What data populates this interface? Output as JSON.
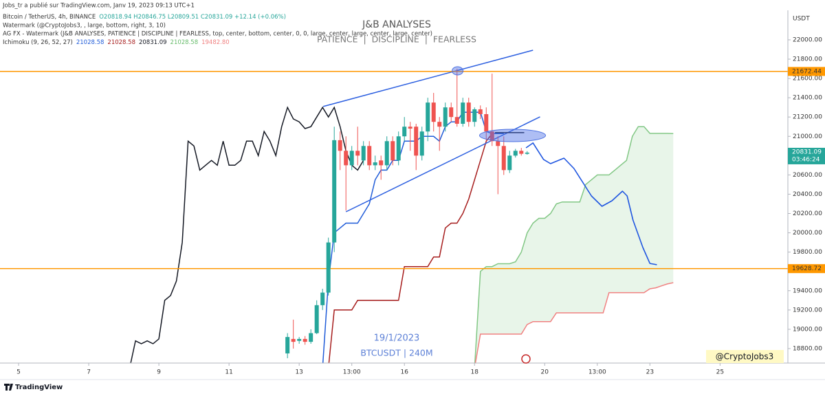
{
  "header": {
    "published": "Jobs_tr a publié sur TradingView.com, Janv 19, 2023 09:13 UTC+1",
    "symbol": "Bitcoin / TetherUS, 4h, BINANCE",
    "ohlc": "O20818.94 H20846.75 L20809.51 C20831.09 +12.14 (+0.06%)",
    "watermark_1": "Watermark (@CryptoJobs3, , large, bottom, right, 3, 10)",
    "watermark_2": "AG FX - Watermark (J&B ANALYSES, PATIENCE  |  DISCIPLINE  |  FEARLESS, top, center, bottom, center, 0, 0, large, center, large, center, large, center)",
    "ichimoku": "Ichimoku (9, 26, 52, 27)",
    "ichimoku_values": [
      "21028.58",
      "21028.58",
      "20831.09",
      "21028.58",
      "19482.80"
    ],
    "ichimoku_colors": [
      "#1f5bd8",
      "#a61c1c",
      "#131722",
      "#66bb6a",
      "#f08080"
    ]
  },
  "watermark": {
    "title": "J&B ANALYSES",
    "subtitle": "PATIENCE  |  DISCIPLINE  |  FEARLESS",
    "date": "19/1/2023",
    "symbol": "BTCUSDT | 240M",
    "signature": "@CryptoJobs3"
  },
  "footer": {
    "logo": "TradingView"
  },
  "chart_data": {
    "type": "candlestick",
    "y_unit": "USDT",
    "up_color": "#26a69a",
    "down_color": "#ef5350",
    "x": [
      46,
      47,
      48,
      49,
      50,
      51,
      52,
      53,
      54,
      55,
      56,
      57,
      58,
      59,
      60,
      61,
      62,
      63,
      64,
      65,
      66,
      67,
      68,
      69,
      70,
      71,
      72,
      73,
      74,
      75,
      76,
      77,
      78,
      79,
      80,
      81,
      82,
      83,
      84,
      85,
      86,
      87
    ],
    "open": [
      18750,
      18900,
      18880,
      18900,
      18870,
      18960,
      19250,
      19380,
      19900,
      20960,
      20850,
      20700,
      20850,
      20750,
      20900,
      20700,
      20750,
      20700,
      20950,
      20750,
      21000,
      21100,
      21100,
      20800,
      21050,
      21350,
      21150,
      21100,
      21300,
      21200,
      21130,
      21350,
      21150,
      21280,
      21230,
      21050,
      20950,
      20900,
      20650,
      20800,
      20850,
      20818.94
    ],
    "high": [
      18960,
      19100,
      18920,
      18930,
      19000,
      19300,
      19420,
      19950,
      21100,
      21050,
      21000,
      20900,
      21100,
      20950,
      20950,
      20800,
      20800,
      21000,
      21000,
      21050,
      21200,
      21150,
      21130,
      21100,
      21400,
      21450,
      21200,
      21350,
      21350,
      21700,
      21400,
      21400,
      21300,
      21320,
      21300,
      21650,
      21000,
      21000,
      20850,
      20870,
      20880,
      20846.75
    ],
    "low": [
      18700,
      18800,
      18850,
      18840,
      18850,
      18950,
      19200,
      19350,
      19800,
      20650,
      20230,
      20650,
      20700,
      20700,
      20650,
      20650,
      20550,
      20650,
      20700,
      20700,
      20950,
      20850,
      20650,
      20750,
      20950,
      21050,
      20850,
      21050,
      21150,
      21100,
      21100,
      21100,
      21100,
      21180,
      20950,
      20900,
      20400,
      20600,
      20620,
      20780,
      20800,
      20809.51
    ],
    "close": [
      18920,
      18870,
      18900,
      18870,
      18960,
      19250,
      19380,
      19900,
      20960,
      20850,
      20700,
      20850,
      20800,
      20900,
      20700,
      20730,
      20700,
      20950,
      20750,
      21000,
      21100,
      21080,
      20800,
      21050,
      21350,
      21150,
      21100,
      21300,
      21200,
      21130,
      21350,
      21150,
      21280,
      21230,
      21050,
      20950,
      20900,
      20650,
      20800,
      20850,
      20818.94,
      20831.09
    ],
    "lines": [
      {
        "color": "#131722",
        "x": [
          19,
          20,
          21,
          22,
          23,
          24,
          25,
          26,
          27,
          28,
          29,
          30,
          31,
          32,
          33,
          34,
          35,
          36,
          37,
          38,
          39,
          40,
          41,
          42,
          43,
          44,
          45,
          46,
          47,
          48,
          49,
          50,
          51,
          52,
          53,
          54,
          55,
          56,
          57,
          58,
          59
        ],
        "values": [
          18600,
          18880,
          18850,
          18880,
          18850,
          18900,
          19300,
          19350,
          19500,
          19900,
          20950,
          20900,
          20650,
          20700,
          20750,
          20700,
          20950,
          20700,
          20700,
          20750,
          20950,
          20950,
          20800,
          21050,
          20950,
          20800,
          21100,
          21300,
          21180,
          21150,
          21080,
          21100,
          21200,
          21300,
          21200,
          21300,
          21100,
          20850,
          20700,
          20650,
          20750
        ]
      },
      {
        "color": "#1f5bd8",
        "x": [
          52,
          53,
          54,
          55,
          56,
          57,
          58,
          59,
          60,
          61,
          62,
          63,
          64,
          65,
          66,
          67,
          68,
          69,
          70,
          71,
          72,
          73,
          74,
          75,
          76,
          77,
          78,
          79,
          80,
          81,
          82,
          83
        ],
        "values": [
          18600,
          19500,
          20000,
          20050,
          20100,
          20100,
          20100,
          20200,
          20300,
          20550,
          20650,
          20650,
          20750,
          20750,
          20950,
          20950,
          20950,
          21000,
          21000,
          21000,
          20950,
          21100,
          21150,
          21150,
          21250,
          21250,
          21250,
          21250,
          21050,
          21028.58,
          21028.58,
          21028.58
        ]
      },
      {
        "color": "#a61c1c",
        "x": [
          53,
          54,
          55,
          56,
          57,
          58,
          59,
          60,
          61,
          62,
          63,
          64,
          65,
          66,
          67,
          68,
          69,
          70,
          71,
          72,
          73,
          74,
          75,
          76,
          77,
          78,
          79,
          80,
          81
        ],
        "values": [
          18600,
          19200,
          19200,
          19200,
          19200,
          19300,
          19300,
          19300,
          19300,
          19300,
          19300,
          19300,
          19300,
          19650,
          19650,
          19650,
          19650,
          19650,
          19750,
          19750,
          20050,
          20100,
          20100,
          20200,
          20350,
          20550,
          20750,
          20950,
          21028.58
        ]
      },
      {
        "color": "#81c784",
        "fill_color": "rgba(165,214,167,0.25)",
        "x": [
          78,
          79,
          80,
          81,
          82,
          83,
          84,
          85,
          86,
          87,
          88,
          89,
          90,
          91,
          92,
          93,
          94,
          95,
          96,
          97,
          98,
          99,
          100,
          101,
          102,
          103,
          104,
          105,
          106,
          107,
          108,
          109,
          110,
          111,
          112
        ],
        "values": [
          18600,
          19600,
          19650,
          19650,
          19680,
          19680,
          19680,
          19700,
          19800,
          20000,
          20100,
          20150,
          20150,
          20200,
          20300,
          20320,
          20320,
          20320,
          20320,
          20500,
          20550,
          20600,
          20600,
          20600,
          20650,
          20700,
          20750,
          21000,
          21100,
          21100,
          21030,
          21030,
          21030,
          21030,
          21028.58
        ]
      },
      {
        "color": "#f08080",
        "x": [
          78,
          79,
          80,
          81,
          82,
          83,
          84,
          85,
          86,
          87,
          88,
          89,
          90,
          91,
          92,
          93,
          94,
          95,
          96,
          97,
          98,
          99,
          100,
          101,
          102,
          103,
          104,
          105,
          106,
          107,
          108,
          109,
          110,
          111,
          112
        ],
        "values": [
          18600,
          18950,
          18950,
          18950,
          18950,
          18950,
          18950,
          18950,
          18950,
          19050,
          19080,
          19080,
          19080,
          19080,
          19170,
          19170,
          19170,
          19170,
          19170,
          19170,
          19170,
          19170,
          19170,
          19380,
          19380,
          19380,
          19380,
          19380,
          19380,
          19380,
          19420,
          19430,
          19450,
          19470,
          19482.8
        ]
      }
    ],
    "forecast": {
      "color": "#1e55e0",
      "x": [
        86.8,
        88,
        89.8,
        91,
        93.3,
        95,
        98,
        99.8,
        101.5,
        103.3,
        104.1,
        105.1,
        106.8,
        108,
        109.2
      ],
      "values": [
        20881,
        20931,
        20760,
        20717,
        20774,
        20667,
        20382,
        20275,
        20332,
        20432,
        20382,
        20132,
        19847,
        19683,
        19669
      ]
    },
    "trendlines": [
      {
        "color": "#2c5fe0",
        "x": [
          52.1,
          88
        ],
        "values": [
          21309,
          21893
        ]
      },
      {
        "color": "#2c5fe0",
        "x": [
          56,
          89.2
        ],
        "values": [
          20218,
          21202
        ]
      },
      {
        "color": "#131722",
        "x": [
          81.5,
          86.5
        ],
        "values": [
          21038,
          21038
        ]
      }
    ],
    "highlights": [
      {
        "x": 75.1,
        "value": 21679,
        "color": "rgba(76,110,230,0.45)"
      },
      {
        "x": 84.5,
        "value": 21009,
        "color": "rgba(76,110,230,0.45)"
      }
    ],
    "levels": [
      {
        "value": 21672.44,
        "color": "#ff9800"
      },
      {
        "value": 19628.72,
        "color": "#ff9800"
      }
    ],
    "last_price": 20831.09,
    "countdown": "03:46:24",
    "xlim": [
      -3.18,
      131.6
    ],
    "xticks": [
      {
        "value": 0,
        "label": "5"
      },
      {
        "value": 12,
        "label": "7"
      },
      {
        "value": 24,
        "label": "9"
      },
      {
        "value": 36,
        "label": "11"
      },
      {
        "value": 48,
        "label": "13"
      },
      {
        "value": 57,
        "label": "13:00"
      },
      {
        "value": 66,
        "label": "16"
      },
      {
        "value": 78,
        "label": "18"
      },
      {
        "value": 90,
        "label": "20"
      },
      {
        "value": 99,
        "label": "13:00"
      },
      {
        "value": 108,
        "label": "23"
      },
      {
        "value": 120,
        "label": "25"
      }
    ],
    "ylim": [
      18650,
      22306
    ],
    "yticks": [
      {
        "value": 22000,
        "label": "22000.00"
      },
      {
        "value": 21800,
        "label": "21800.00"
      },
      {
        "value": 21600,
        "label": "21600.00"
      },
      {
        "value": 21400,
        "label": "21400.00"
      },
      {
        "value": 21200,
        "label": "21200.00"
      },
      {
        "value": 21000,
        "label": "21000.00"
      },
      {
        "value": 20800,
        "label": "20800.00"
      },
      {
        "value": 20600,
        "label": "20600.00"
      },
      {
        "value": 20400,
        "label": "20400.00"
      },
      {
        "value": 20200,
        "label": "20200.00"
      },
      {
        "value": 20000,
        "label": "20000.00"
      },
      {
        "value": 19800,
        "label": "19800.00"
      },
      {
        "value": 19600,
        "label": "19600.00"
      },
      {
        "value": 19400,
        "label": "19400.00"
      },
      {
        "value": 19200,
        "label": "19200.00"
      },
      {
        "value": 19000,
        "label": "19000.00"
      },
      {
        "value": 18800,
        "label": "18800.00"
      }
    ],
    "grid": false
  }
}
